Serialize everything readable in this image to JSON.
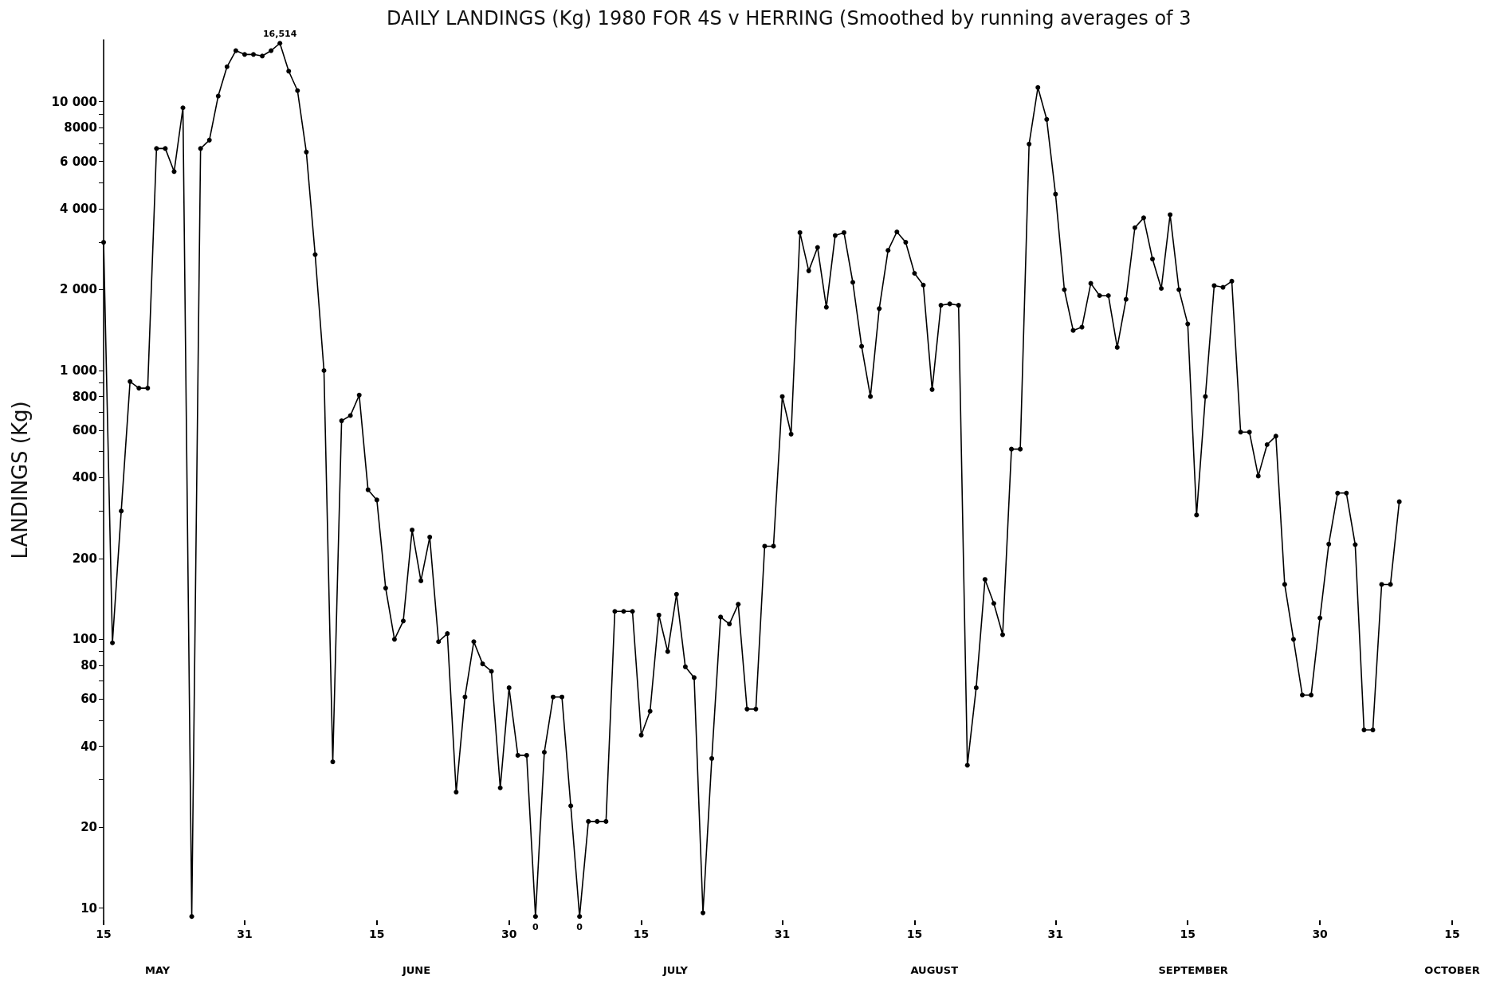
{
  "chart_data": {
    "type": "line",
    "title": "DAILY LANDINGS (Kg) 1980 FOR 4S v HERRING (Smoothed by running averages of 3",
    "ylabel": "LANDINGS (Kg)",
    "x": [
      "1980-05-15",
      "1980-05-16",
      "1980-05-17",
      "1980-05-18",
      "1980-05-19",
      "1980-05-20",
      "1980-05-21",
      "1980-05-22",
      "1980-05-23",
      "1980-05-24",
      "1980-05-25",
      "1980-05-26",
      "1980-05-27",
      "1980-05-28",
      "1980-05-29",
      "1980-05-30",
      "1980-05-31",
      "1980-06-01",
      "1980-06-02",
      "1980-06-03",
      "1980-06-04",
      "1980-06-05",
      "1980-06-06",
      "1980-06-07",
      "1980-06-08",
      "1980-06-09",
      "1980-06-10",
      "1980-06-11",
      "1980-06-12",
      "1980-06-13",
      "1980-06-14",
      "1980-06-15",
      "1980-06-16",
      "1980-06-17",
      "1980-06-18",
      "1980-06-19",
      "1980-06-20",
      "1980-06-21",
      "1980-06-22",
      "1980-06-23",
      "1980-06-24",
      "1980-06-25",
      "1980-06-26",
      "1980-06-27",
      "1980-06-28",
      "1980-06-29",
      "1980-06-30",
      "1980-07-01",
      "1980-07-02",
      "1980-07-03",
      "1980-07-04",
      "1980-07-05",
      "1980-07-06",
      "1980-07-07",
      "1980-07-08",
      "1980-07-09",
      "1980-07-10",
      "1980-07-11",
      "1980-07-12",
      "1980-07-13",
      "1980-07-14",
      "1980-07-15",
      "1980-07-16",
      "1980-07-17",
      "1980-07-18",
      "1980-07-19",
      "1980-07-20",
      "1980-07-21",
      "1980-07-22",
      "1980-07-23",
      "1980-07-24",
      "1980-07-25",
      "1980-07-26",
      "1980-07-27",
      "1980-07-28",
      "1980-07-29",
      "1980-07-30",
      "1980-07-31",
      "1980-08-01",
      "1980-08-02",
      "1980-08-03",
      "1980-08-04",
      "1980-08-05",
      "1980-08-06",
      "1980-08-07",
      "1980-08-08",
      "1980-08-09",
      "1980-08-10",
      "1980-08-11",
      "1980-08-12",
      "1980-08-13",
      "1980-08-14",
      "1980-08-15",
      "1980-08-16",
      "1980-08-17",
      "1980-08-18",
      "1980-08-19",
      "1980-08-20",
      "1980-08-21",
      "1980-08-22",
      "1980-08-23",
      "1980-08-24",
      "1980-08-25",
      "1980-08-26",
      "1980-08-27",
      "1980-08-28",
      "1980-08-29",
      "1980-08-30",
      "1980-08-31",
      "1980-09-01",
      "1980-09-02",
      "1980-09-03",
      "1980-09-04",
      "1980-09-05",
      "1980-09-06",
      "1980-09-07",
      "1980-09-08",
      "1980-09-09",
      "1980-09-10",
      "1980-09-11",
      "1980-09-12",
      "1980-09-13",
      "1980-09-14",
      "1980-09-15",
      "1980-09-16",
      "1980-09-17",
      "1980-09-18",
      "1980-09-19",
      "1980-09-20",
      "1980-09-21",
      "1980-09-22",
      "1980-09-23",
      "1980-09-24",
      "1980-09-25",
      "1980-09-26",
      "1980-09-27",
      "1980-09-28",
      "1980-09-29",
      "1980-09-30",
      "1980-10-01",
      "1980-10-02",
      "1980-10-03",
      "1980-10-04",
      "1980-10-05",
      "1980-10-06",
      "1980-10-07",
      "1980-10-08",
      "1980-10-09"
    ],
    "series": [
      {
        "color": "#000000",
        "values": [
          3000,
          97,
          300,
          910,
          860,
          860,
          6700,
          6700,
          5500,
          9500,
          9.3,
          6700,
          7200,
          10500,
          13500,
          15500,
          15000,
          15000,
          14800,
          15500,
          16514,
          13000,
          11000,
          6500,
          2700,
          1000,
          35,
          650,
          680,
          810,
          360,
          330,
          155,
          100,
          117,
          255,
          165,
          240,
          98,
          105,
          27,
          61,
          98,
          81,
          76,
          28,
          66,
          37,
          37,
          9.3,
          38,
          61,
          61,
          24,
          9.3,
          21,
          21,
          21,
          127,
          127,
          127,
          44,
          54,
          123,
          90,
          147,
          79,
          72,
          9.6,
          36,
          121,
          114,
          135,
          55,
          55,
          222,
          222,
          800,
          580,
          3260,
          2350,
          2870,
          1720,
          3180,
          3260,
          2130,
          1230,
          800,
          1700,
          2800,
          3280,
          3000,
          2300,
          2080,
          850,
          1750,
          1770,
          1750,
          34,
          66,
          167,
          136,
          104,
          510,
          510,
          6960,
          11300,
          8600,
          4530,
          2000,
          1410,
          1450,
          2110,
          1900,
          1900,
          1220,
          1840,
          3400,
          3700,
          2600,
          2020,
          3800,
          2000,
          1490,
          290,
          800,
          2070,
          2040,
          2150,
          590,
          590,
          405,
          530,
          570,
          160,
          100,
          62,
          62,
          120,
          226,
          350,
          350,
          225,
          46,
          46,
          160,
          160,
          325
        ]
      }
    ],
    "log": "y",
    "xlim": [
      "1980-05-15",
      "1980-10-15"
    ],
    "xticks": [
      {
        "value": "1980-05-15",
        "label": "15"
      },
      {
        "value": "1980-05-31",
        "label": "31"
      },
      {
        "value": "1980-06-15",
        "label": "15"
      },
      {
        "value": "1980-06-30",
        "label": "30"
      },
      {
        "value": "1980-07-15",
        "label": "15"
      },
      {
        "value": "1980-07-31",
        "label": "31"
      },
      {
        "value": "1980-08-15",
        "label": "15"
      },
      {
        "value": "1980-08-31",
        "label": "31"
      },
      {
        "value": "1980-09-15",
        "label": "15"
      },
      {
        "value": "1980-09-30",
        "label": "30"
      },
      {
        "value": "1980-10-15",
        "label": "15"
      }
    ],
    "ylim": [
      9,
      17000
    ],
    "yticks": [
      10,
      20,
      {
        "value": 30,
        "label": null
      },
      40,
      {
        "value": 50,
        "label": null
      },
      60,
      {
        "value": 70,
        "label": null
      },
      80,
      {
        "value": 90,
        "label": null
      },
      100,
      200,
      {
        "value": 300,
        "label": null
      },
      400,
      {
        "value": 500,
        "label": null
      },
      600,
      {
        "value": 700,
        "label": null
      },
      800,
      {
        "value": 900,
        "label": null
      },
      {
        "value": 1000,
        "label": "1 000"
      },
      {
        "value": 2000,
        "label": "2 000"
      },
      {
        "value": 3000,
        "label": null
      },
      {
        "value": 4000,
        "label": "4 000"
      },
      {
        "value": 5000,
        "label": null
      },
      {
        "value": 6000,
        "label": "6 000"
      },
      {
        "value": 7000,
        "label": null
      },
      8000,
      {
        "value": 9000,
        "label": null
      },
      {
        "value": 10000,
        "label": "10 000"
      }
    ],
    "annotations": [
      {
        "text": "16,514",
        "x": "1980-06-04",
        "y": 16514
      },
      {
        "text": "0",
        "x": "1980-07-03",
        "y": 9.3
      },
      {
        "text": "0",
        "x": "1980-07-08",
        "y": 9.3
      },
      "MAY",
      "JUNE",
      "JULY",
      "AUGUST",
      "SEPTEMBER",
      "OCTOBER"
    ],
    "grid": false,
    "marker": "circle",
    "line_style": "solid"
  }
}
